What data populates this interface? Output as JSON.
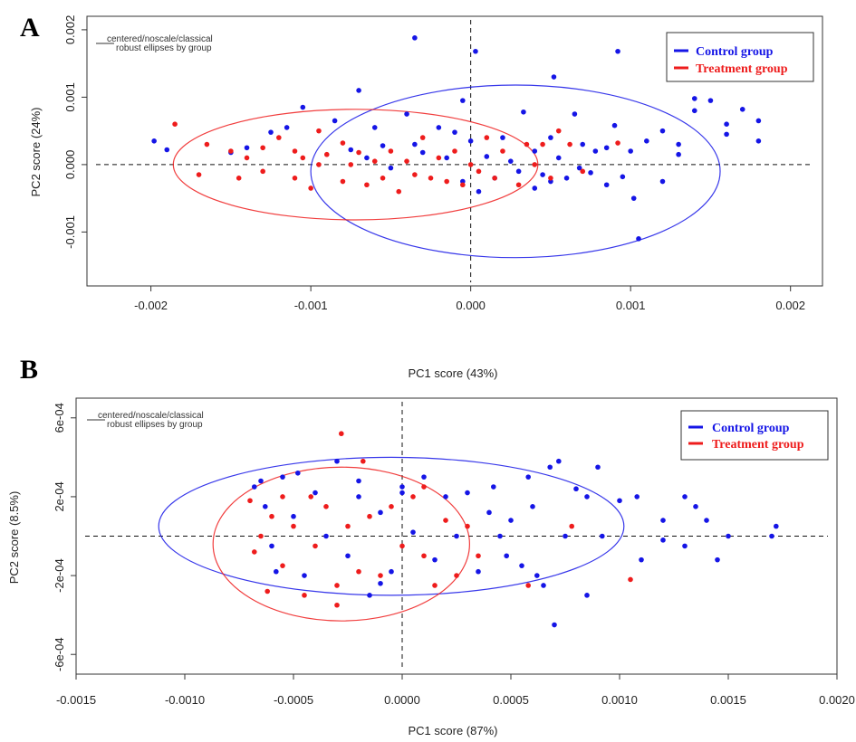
{
  "colors": {
    "control": "#1515e6",
    "treatment": "#ee1c1c",
    "axis": "#222222"
  },
  "legend": {
    "control_label": "Control group",
    "treatment_label": "Treatment group"
  },
  "method_note": {
    "line1": "centered/noscale/classical",
    "line2": "robust ellipses by group"
  },
  "chart_data": [
    {
      "panel": "A",
      "type": "scatter",
      "title": "",
      "xlabel": "PC1 score (43%)",
      "ylabel": "PC2 score (24%)",
      "xlim": [
        -0.0024,
        0.0022
      ],
      "ylim": [
        -0.0018,
        0.0022
      ],
      "xticks": [
        -0.002,
        -0.001,
        0.0,
        0.001,
        0.002
      ],
      "xtick_labels": [
        "-0.002",
        "-0.001",
        "0.000",
        "0.001",
        "0.002"
      ],
      "yticks": [
        -0.001,
        0.0,
        0.001,
        0.002
      ],
      "ytick_labels": [
        "-0.001",
        "0.000",
        "0.001",
        "0.002"
      ],
      "grid": false,
      "legend_position": "top-right",
      "reference_lines": {
        "x": 0,
        "y": 0
      },
      "ellipses": [
        {
          "group": "Control group",
          "center": [
            0.00028,
            -0.0001
          ],
          "semi_x": 0.00128,
          "semi_y": 0.00128
        },
        {
          "group": "Treatment group",
          "center": [
            -0.00072,
            0.0
          ],
          "semi_x": 0.00114,
          "semi_y": 0.00082
        }
      ],
      "series": [
        {
          "name": "Control group",
          "points": [
            [
              -0.00198,
              0.00035
            ],
            [
              -0.0014,
              0.00025
            ],
            [
              -0.00115,
              0.00055
            ],
            [
              -0.00105,
              0.00085
            ],
            [
              -0.00085,
              0.00065
            ],
            [
              -0.00075,
              0.00022
            ],
            [
              -0.0007,
              0.0011
            ],
            [
              -0.00065,
              0.0001
            ],
            [
              -0.0006,
              0.00055
            ],
            [
              -0.00055,
              0.00028
            ],
            [
              -0.0005,
              -5e-05
            ],
            [
              -0.0004,
              0.00075
            ],
            [
              -0.00035,
              0.0003
            ],
            [
              -0.0003,
              0.00018
            ],
            [
              -0.0002,
              0.00055
            ],
            [
              -0.00015,
              0.0001
            ],
            [
              -0.0001,
              0.00048
            ],
            [
              -5e-05,
              -0.00025
            ],
            [
              -5e-05,
              0.00095
            ],
            [
              0.0,
              0.00035
            ],
            [
              3e-05,
              0.00168
            ],
            [
              5e-05,
              -0.0004
            ],
            [
              0.0001,
              0.00012
            ],
            [
              0.00015,
              -0.0002
            ],
            [
              0.0002,
              0.0004
            ],
            [
              0.00025,
              5e-05
            ],
            [
              0.0003,
              -0.0001
            ],
            [
              0.00033,
              0.00078
            ],
            [
              0.0004,
              -0.00035
            ],
            [
              0.0004,
              0.0002
            ],
            [
              0.00045,
              -0.00015
            ],
            [
              0.0005,
              0.0004
            ],
            [
              0.0005,
              -0.00025
            ],
            [
              0.00052,
              0.0013
            ],
            [
              0.00055,
              0.0001
            ],
            [
              0.0006,
              -0.0002
            ],
            [
              0.00065,
              0.00075
            ],
            [
              0.00068,
              -5e-05
            ],
            [
              0.0007,
              0.0003
            ],
            [
              0.00075,
              -0.00012
            ],
            [
              0.00078,
              0.0002
            ],
            [
              0.00085,
              -0.0003
            ],
            [
              0.00085,
              0.00025
            ],
            [
              0.0009,
              0.00058
            ],
            [
              0.00092,
              0.00168
            ],
            [
              0.00095,
              -0.00018
            ],
            [
              0.001,
              0.0002
            ],
            [
              0.00102,
              -0.0005
            ],
            [
              0.00105,
              -0.0011
            ],
            [
              0.0011,
              0.00035
            ],
            [
              0.0012,
              0.0005
            ],
            [
              0.0012,
              -0.00025
            ],
            [
              0.0013,
              0.0003
            ],
            [
              0.0013,
              0.00015
            ],
            [
              0.0014,
              0.0008
            ],
            [
              0.0014,
              0.00098
            ],
            [
              0.0015,
              0.00095
            ],
            [
              0.0016,
              0.00045
            ],
            [
              0.0017,
              0.00082
            ],
            [
              0.0016,
              0.0006
            ],
            [
              0.0018,
              0.00065
            ],
            [
              0.0018,
              0.00035
            ],
            [
              -0.00035,
              0.00188
            ],
            [
              -0.0015,
              0.00018
            ],
            [
              -0.0019,
              0.00022
            ],
            [
              -0.00125,
              0.00048
            ]
          ]
        },
        {
          "name": "Treatment group",
          "points": [
            [
              -0.00185,
              0.0006
            ],
            [
              -0.0017,
              -0.00015
            ],
            [
              -0.00165,
              0.0003
            ],
            [
              -0.0015,
              0.0002
            ],
            [
              -0.00145,
              -0.0002
            ],
            [
              -0.0014,
              0.0001
            ],
            [
              -0.0013,
              -0.0001
            ],
            [
              -0.0013,
              0.00025
            ],
            [
              -0.0012,
              0.0004
            ],
            [
              -0.0011,
              -0.0002
            ],
            [
              -0.0011,
              0.0002
            ],
            [
              -0.00105,
              0.0001
            ],
            [
              -0.001,
              -0.00035
            ],
            [
              -0.00095,
              0.0005
            ],
            [
              -0.00095,
              0.0
            ],
            [
              -0.0009,
              0.00015
            ],
            [
              -0.0008,
              -0.00025
            ],
            [
              -0.0008,
              0.00032
            ],
            [
              -0.00075,
              0.0
            ],
            [
              -0.0007,
              0.00018
            ],
            [
              -0.00065,
              -0.0003
            ],
            [
              -0.0006,
              5e-05
            ],
            [
              -0.00055,
              -0.0002
            ],
            [
              -0.0005,
              0.0002
            ],
            [
              -0.00045,
              -0.0004
            ],
            [
              -0.0004,
              5e-05
            ],
            [
              -0.00035,
              -0.00015
            ],
            [
              -0.0003,
              0.0004
            ],
            [
              -0.00025,
              -0.0002
            ],
            [
              -0.0002,
              0.0001
            ],
            [
              -0.00015,
              -0.00025
            ],
            [
              -0.0001,
              0.0002
            ],
            [
              -5e-05,
              -0.0003
            ],
            [
              0.0,
              0.0
            ],
            [
              5e-05,
              -0.0001
            ],
            [
              0.0001,
              0.0004
            ],
            [
              0.00015,
              -0.0002
            ],
            [
              0.0002,
              0.0002
            ],
            [
              0.0003,
              -0.0003
            ],
            [
              0.00035,
              0.0003
            ],
            [
              0.0004,
              0.0
            ],
            [
              0.00045,
              0.0003
            ],
            [
              0.0005,
              -0.0002
            ],
            [
              0.00055,
              0.0005
            ],
            [
              0.00062,
              0.0003
            ],
            [
              0.0007,
              -0.0001
            ],
            [
              0.00092,
              0.00032
            ]
          ]
        }
      ]
    },
    {
      "panel": "B",
      "type": "scatter",
      "title": "",
      "xlabel": "PC1 score (87%)",
      "ylabel": "PC2 score (8.5%)",
      "xlim": [
        -0.0015,
        0.002
      ],
      "ylim": [
        -0.0007,
        0.0007
      ],
      "xticks": [
        -0.0015,
        -0.001,
        -0.0005,
        0.0,
        0.0005,
        0.001,
        0.0015,
        0.002
      ],
      "xtick_labels": [
        "-0.0015",
        "-0.0010",
        "-0.0005",
        "0.0000",
        "0.0005",
        "0.0010",
        "0.0015",
        "0.0020"
      ],
      "yticks": [
        -0.0006,
        -0.0002,
        0.0002,
        0.0006
      ],
      "ytick_labels": [
        "-6e-04",
        "-2e-04",
        "2e-04",
        "6e-04"
      ],
      "grid": false,
      "legend_position": "top-right",
      "reference_lines": {
        "x": 0,
        "y": 0
      },
      "ellipses": [
        {
          "group": "Control group",
          "center": [
            -5e-05,
            5e-05
          ],
          "semi_x": 0.00107,
          "semi_y": 0.00035
        },
        {
          "group": "Treatment group",
          "center": [
            -0.00028,
            -4e-05
          ],
          "semi_x": 0.00059,
          "semi_y": 0.00039
        }
      ],
      "series": [
        {
          "name": "Control group",
          "points": [
            [
              -0.00068,
              0.00025
            ],
            [
              -0.00063,
              0.00015
            ],
            [
              -0.0006,
              -5e-05
            ],
            [
              -0.00055,
              0.0003
            ],
            [
              -0.0005,
              0.0001
            ],
            [
              -0.00045,
              -0.0002
            ],
            [
              -0.0004,
              0.00022
            ],
            [
              -0.00035,
              0.0
            ],
            [
              -0.0003,
              0.00038
            ],
            [
              -0.00025,
              -0.0001
            ],
            [
              -0.0002,
              0.0002
            ],
            [
              -0.00015,
              -0.0003
            ],
            [
              -0.0001,
              0.00012
            ],
            [
              -5e-05,
              -0.00018
            ],
            [
              0.0,
              0.00022
            ],
            [
              5e-05,
              2e-05
            ],
            [
              0.0001,
              0.0003
            ],
            [
              0.00015,
              -0.00012
            ],
            [
              0.0002,
              0.0002
            ],
            [
              0.00025,
              0.0
            ],
            [
              0.0003,
              0.00022
            ],
            [
              0.00035,
              -0.00018
            ],
            [
              0.0004,
              0.00012
            ],
            [
              0.00045,
              0.0
            ],
            [
              0.0005,
              8e-05
            ],
            [
              0.00055,
              -0.00015
            ],
            [
              0.0006,
              0.00015
            ],
            [
              0.00065,
              -0.00025
            ],
            [
              0.00068,
              0.00035
            ],
            [
              0.0007,
              -0.00045
            ],
            [
              0.00075,
              0.0
            ],
            [
              0.0008,
              0.00024
            ],
            [
              0.00085,
              -0.0003
            ],
            [
              0.00085,
              0.0002
            ],
            [
              0.0009,
              0.00035
            ],
            [
              0.00092,
              0.0
            ],
            [
              0.001,
              0.00018
            ],
            [
              0.00108,
              0.0002
            ],
            [
              0.0011,
              -0.00012
            ],
            [
              0.0012,
              -2e-05
            ],
            [
              0.0012,
              8e-05
            ],
            [
              0.0013,
              0.0002
            ],
            [
              0.0013,
              -5e-05
            ],
            [
              0.00135,
              0.00015
            ],
            [
              0.0014,
              8e-05
            ],
            [
              0.00145,
              -0.00012
            ],
            [
              0.0015,
              0.0
            ],
            [
              0.0017,
              0.0
            ],
            [
              0.00172,
              5e-05
            ],
            [
              0.00072,
              0.00038
            ],
            [
              0.00062,
              -0.0002
            ],
            [
              0.00058,
              0.0003
            ],
            [
              0.00048,
              -0.0001
            ],
            [
              0.00042,
              0.00025
            ],
            [
              -0.00065,
              0.00028
            ],
            [
              -0.00058,
              -0.00018
            ],
            [
              -0.00048,
              0.00032
            ],
            [
              -0.0001,
              -0.00024
            ],
            [
              0.0,
              0.00025
            ],
            [
              -0.0002,
              0.00028
            ]
          ]
        },
        {
          "name": "Treatment group",
          "points": [
            [
              -0.0007,
              0.00018
            ],
            [
              -0.00068,
              -8e-05
            ],
            [
              -0.00065,
              0.0
            ],
            [
              -0.00062,
              -0.00028
            ],
            [
              -0.0006,
              0.0001
            ],
            [
              -0.00055,
              -0.00015
            ],
            [
              -0.0005,
              5e-05
            ],
            [
              -0.00045,
              -0.0003
            ],
            [
              -0.00042,
              0.0002
            ],
            [
              -0.0004,
              -5e-05
            ],
            [
              -0.00035,
              0.00015
            ],
            [
              -0.0003,
              -0.00025
            ],
            [
              -0.00028,
              0.00052
            ],
            [
              -0.00025,
              5e-05
            ],
            [
              -0.0002,
              -0.00018
            ],
            [
              -0.00018,
              0.00038
            ],
            [
              -0.00015,
              0.0001
            ],
            [
              -0.0001,
              -0.0002
            ],
            [
              -5e-05,
              0.00015
            ],
            [
              0.0,
              -5e-05
            ],
            [
              5e-05,
              0.0002
            ],
            [
              0.0001,
              -0.0001
            ],
            [
              0.00015,
              -0.00025
            ],
            [
              0.0002,
              8e-05
            ],
            [
              0.00025,
              -0.0002
            ],
            [
              0.0003,
              5e-05
            ],
            [
              0.00035,
              -0.0001
            ],
            [
              0.00058,
              -0.00025
            ],
            [
              0.00078,
              5e-05
            ],
            [
              0.00105,
              -0.00022
            ],
            [
              -0.00055,
              0.0002
            ],
            [
              -0.0003,
              -0.00035
            ],
            [
              0.0001,
              0.00025
            ]
          ]
        }
      ]
    }
  ]
}
